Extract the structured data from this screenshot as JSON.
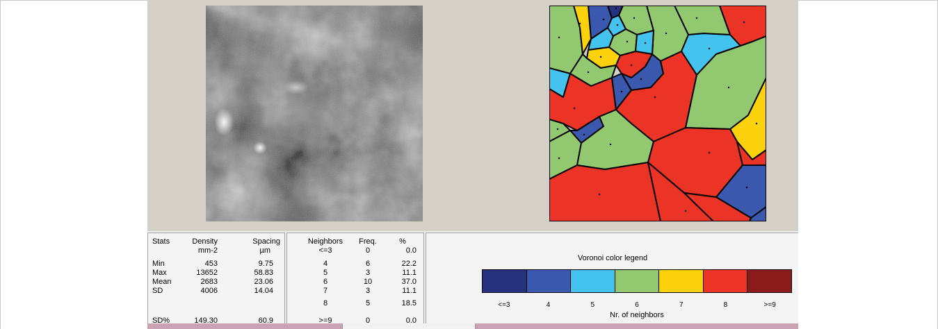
{
  "stats": {
    "headers": [
      "Stats",
      "Density",
      "Spacing"
    ],
    "units": [
      "mm-2",
      "µm"
    ],
    "rows": [
      {
        "label": "Min",
        "density": "453",
        "spacing": "9.75"
      },
      {
        "label": "Max",
        "density": "13652",
        "spacing": "58.83"
      },
      {
        "label": "Mean",
        "density": "2683",
        "spacing": "23.06"
      },
      {
        "label": "SD",
        "density": "4006",
        "spacing": "14.04"
      },
      {
        "label": "SD%",
        "density": "149.30",
        "spacing": "60.9"
      }
    ]
  },
  "neighbors": {
    "headers": [
      "Neighbors",
      "Freq.",
      "%"
    ],
    "rows": [
      {
        "n": "<=3",
        "freq": "0",
        "pct": "0.0"
      },
      {
        "n": "4",
        "freq": "6",
        "pct": "22.2"
      },
      {
        "n": "5",
        "freq": "3",
        "pct": "11.1"
      },
      {
        "n": "6",
        "freq": "10",
        "pct": "37.0"
      },
      {
        "n": "7",
        "freq": "3",
        "pct": "11.1"
      },
      {
        "n": "8",
        "freq": "5",
        "pct": "18.5"
      },
      {
        "n": ">=9",
        "freq": "0",
        "pct": "0.0"
      }
    ]
  },
  "legend": {
    "title": "Voronoi color legend",
    "axis_label": "Nr. of neighbors",
    "labels": [
      "<=3",
      "4",
      "5",
      "6",
      "7",
      "8",
      ">=9"
    ],
    "colors": [
      "#26327e",
      "#3a58ad",
      "#44c3ee",
      "#92c870",
      "#fbd20c",
      "#eb3326",
      "#8b1a1a"
    ]
  }
}
